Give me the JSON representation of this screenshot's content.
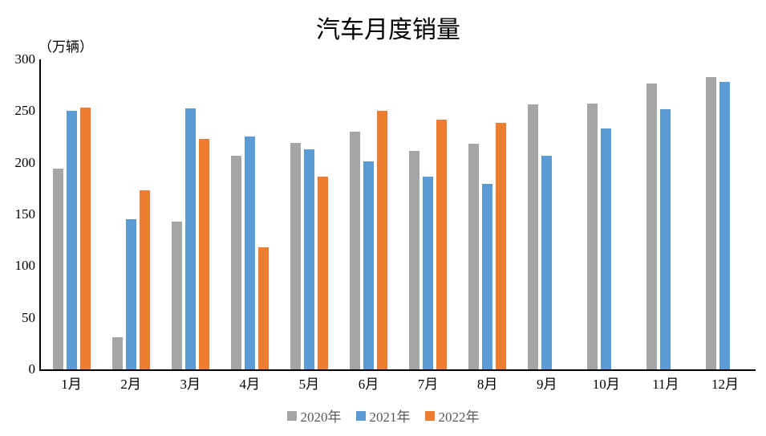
{
  "title": "汽车月度销量",
  "axis_unit_label": "（万辆）",
  "chart_data": {
    "type": "bar",
    "title": "汽车月度销量",
    "ylabel": "（万辆）",
    "categories": [
      "1月",
      "2月",
      "3月",
      "4月",
      "5月",
      "6月",
      "7月",
      "8月",
      "9月",
      "10月",
      "11月",
      "12月"
    ],
    "series": [
      {
        "name": "2020年",
        "color": "#A5A5A5",
        "values": [
          194.1,
          31.0,
          143.0,
          207.0,
          219.4,
          230.0,
          211.2,
          218.6,
          256.5,
          257.3,
          277.0,
          283.1
        ]
      },
      {
        "name": "2021年",
        "color": "#5B9BD5",
        "values": [
          250.3,
          145.5,
          252.6,
          225.2,
          212.8,
          201.5,
          186.4,
          179.9,
          206.7,
          233.3,
          252.2,
          278.6
        ]
      },
      {
        "name": "2022年",
        "color": "#ED7D31",
        "values": [
          253.1,
          173.7,
          223.4,
          118.1,
          186.2,
          250.2,
          242.0,
          238.3,
          null,
          null,
          null,
          null
        ]
      }
    ],
    "ylim": [
      0,
      300
    ],
    "y_ticks": [
      0,
      50,
      100,
      150,
      200,
      250,
      300
    ],
    "grid": false,
    "legend_position": "bottom"
  }
}
